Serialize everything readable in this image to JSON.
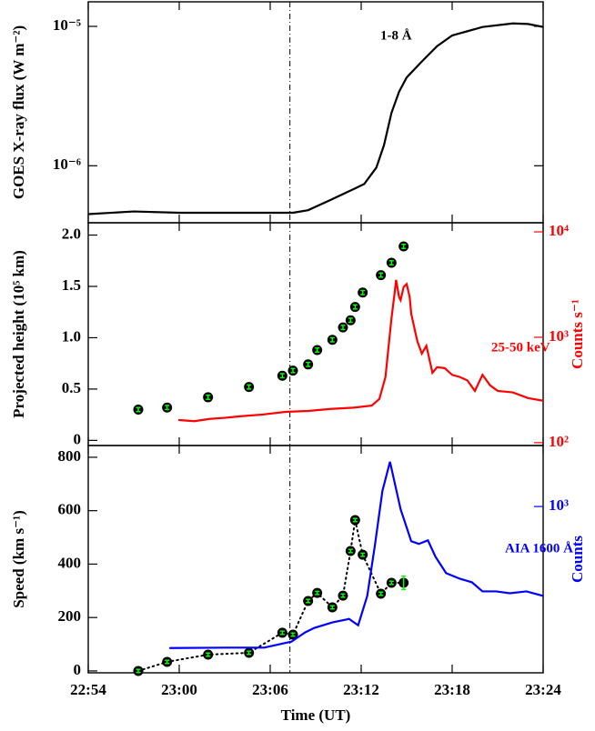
{
  "chart_data": [
    {
      "type": "line",
      "ylabel": "GOES X-ray flux (W m⁻²)",
      "ylog": true,
      "ylim": [
        3.9e-07,
        1.5e-05
      ],
      "yticks": [
        {
          "value": 1e-06,
          "label": "10⁻⁶"
        },
        {
          "value": 1e-05,
          "label": "10⁻⁵"
        }
      ],
      "xlim": [
        1374,
        1404
      ],
      "xticks": [
        1374,
        1380,
        1386,
        1392,
        1398,
        1404
      ],
      "vline_x": 1387.3,
      "series": [
        {
          "name": "1-8 Å",
          "color": "#000000",
          "x": [
            1374,
            1377,
            1380,
            1387.5,
            1388.5,
            1390,
            1391.5,
            1392.2,
            1393,
            1393.5,
            1394,
            1394.5,
            1395,
            1396,
            1397,
            1398,
            1400,
            1402,
            1403,
            1404
          ],
          "values": [
            4.5e-07,
            4.7e-07,
            4.6e-07,
            4.6e-07,
            4.8e-07,
            5.7e-07,
            6.8e-07,
            7.4e-07,
            9.7e-07,
            1.4e-06,
            2.4e-06,
            3.4e-06,
            4.3e-06,
            5.6e-06,
            7.2e-06,
            8.6e-06,
            9.9e-06,
            1.05e-05,
            1.04e-05,
            9.9e-06
          ]
        }
      ]
    },
    {
      "type": "line",
      "ylabel": "Projected height (10⁵ km)",
      "y2label": "Counts s⁻¹",
      "y2color": "#ff0000",
      "ylim": [
        -0.05,
        2.12
      ],
      "yticks": [
        {
          "value": 0,
          "label": "0"
        },
        {
          "value": 0.5,
          "label": "0.5"
        },
        {
          "value": 1,
          "label": "1.0"
        },
        {
          "value": 1.5,
          "label": "1.5"
        },
        {
          "value": 2,
          "label": "2.0"
        }
      ],
      "y2log": true,
      "y2lim": [
        94,
        12200
      ],
      "y2ticks": [
        {
          "value": 100,
          "label": "10²"
        },
        {
          "value": 1000,
          "label": "10³"
        },
        {
          "value": 10000,
          "label": "10⁴"
        }
      ],
      "xlim": [
        1374,
        1404
      ],
      "xticks": [
        1374,
        1380,
        1386,
        1392,
        1398,
        1404
      ],
      "vline_x": 1387.3,
      "series": [
        {
          "type": "scatter",
          "color": "#000000",
          "error_color": "#00ff00",
          "x": [
            1377.3,
            1379.2,
            1381.9,
            1384.6,
            1386.8,
            1387.5,
            1388.5,
            1389.1,
            1390.1,
            1390.8,
            1391.3,
            1391.6,
            1392.1,
            1393.3,
            1394.0,
            1394.8
          ],
          "values": [
            0.3,
            0.32,
            0.42,
            0.52,
            0.63,
            0.68,
            0.74,
            0.88,
            0.98,
            1.1,
            1.17,
            1.3,
            1.44,
            1.61,
            1.73,
            1.89
          ],
          "errors": [
            0.02,
            0.02,
            0.02,
            0.02,
            0.02,
            0.02,
            0.02,
            0.02,
            0.02,
            0.02,
            0.02,
            0.02,
            0.02,
            0.02,
            0.02,
            0.02
          ]
        },
        {
          "name": "25-50 keV",
          "type": "line",
          "axis": "y2",
          "color": "#ff0000",
          "x": [
            1380,
            1381,
            1382,
            1383,
            1384,
            1385.5,
            1387,
            1388.5,
            1390,
            1391.5,
            1392.7,
            1393.2,
            1393.6,
            1394,
            1394.2,
            1394.3,
            1394.5,
            1394.6,
            1394.8,
            1395,
            1395.2,
            1395.3,
            1395.7,
            1396,
            1396.3,
            1396.7,
            1397,
            1397.5,
            1398,
            1398.5,
            1399,
            1399.5,
            1400,
            1400.5,
            1401,
            1402,
            1403,
            1404
          ],
          "values": [
            164,
            160,
            168,
            172,
            178,
            185,
            196,
            200,
            209,
            215,
            225,
            260,
            420,
            1520,
            2600,
            3500,
            2400,
            2250,
            3000,
            3200,
            2400,
            1670,
            920,
            700,
            830,
            460,
            520,
            510,
            440,
            420,
            390,
            310,
            440,
            350,
            310,
            300,
            265,
            250
          ]
        }
      ]
    },
    {
      "type": "line",
      "ylabel": "Speed (km s⁻¹)",
      "y2label": "Counts",
      "y2color": "#0000ff",
      "xlabel": "Time (UT)",
      "ylim": [
        -7,
        844
      ],
      "yticks": [
        0,
        200,
        400,
        600,
        800
      ],
      "y2log": true,
      "y2lim": [
        187,
        1850
      ],
      "y2ticks": [
        {
          "value": 1000,
          "label": "10³"
        }
      ],
      "xlim": [
        1374,
        1404
      ],
      "xticks": [
        {
          "value": 1374,
          "label": "22:54"
        },
        {
          "value": 1380,
          "label": "23:00"
        },
        {
          "value": 1386,
          "label": "23:06"
        },
        {
          "value": 1392,
          "label": "23:12"
        },
        {
          "value": 1398,
          "label": "23:18"
        },
        {
          "value": 1404,
          "label": "23:24"
        }
      ],
      "vline_x": 1387.3,
      "series": [
        {
          "type": "scatter",
          "color": "#000000",
          "error_color": "#00ff00",
          "line_style": "dotted",
          "x": [
            1377.3,
            1379.2,
            1381.9,
            1384.6,
            1386.8,
            1387.5,
            1388.5,
            1389.1,
            1390.1,
            1390.8,
            1391.3,
            1391.6,
            1392.1,
            1393.3,
            1394.0,
            1394.8
          ],
          "values": [
            0,
            34,
            61,
            68,
            143,
            136,
            262,
            292,
            238,
            282,
            449,
            565,
            435,
            289,
            330,
            330
          ],
          "errors": [
            6,
            6,
            6,
            6,
            6,
            6,
            6,
            6,
            6,
            6,
            6,
            6,
            6,
            6,
            6,
            25
          ]
        },
        {
          "name": "AIA 1600 Å",
          "type": "line",
          "axis": "y2",
          "color": "#0000ff",
          "x": [
            1379.4,
            1383.2,
            1385.6,
            1387.4,
            1388.3,
            1388.9,
            1390.1,
            1391.2,
            1391.8,
            1392.4,
            1392.9,
            1393.4,
            1393.9,
            1394.6,
            1395.3,
            1395.8,
            1396.4,
            1396.9,
            1397.6,
            1398.5,
            1399.3,
            1400,
            1400.9,
            1401.8,
            1402.9,
            1404
          ],
          "values": [
            240,
            241,
            241,
            256,
            281,
            294,
            311,
            322,
            302,
            406,
            673,
            1170,
            1570,
            973,
            705,
            686,
            711,
            603,
            511,
            483,
            466,
            425,
            425,
            417,
            425,
            406
          ]
        }
      ]
    }
  ]
}
